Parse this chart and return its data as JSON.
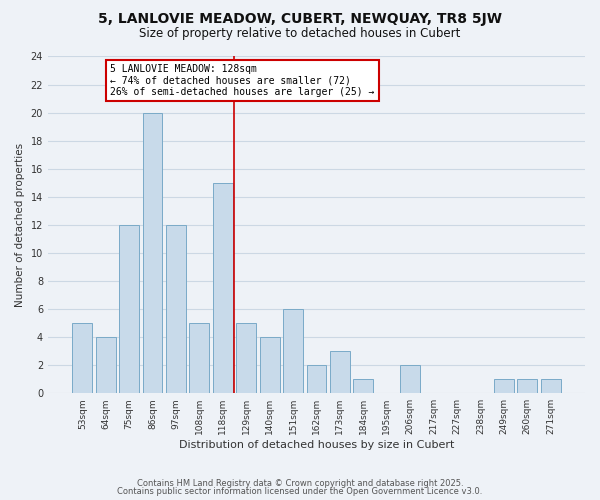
{
  "title": "5, LANLOVIE MEADOW, CUBERT, NEWQUAY, TR8 5JW",
  "subtitle": "Size of property relative to detached houses in Cubert",
  "xlabel": "Distribution of detached houses by size in Cubert",
  "ylabel": "Number of detached properties",
  "bar_color": "#c8daea",
  "bar_edge_color": "#7aaac8",
  "categories": [
    "53sqm",
    "64sqm",
    "75sqm",
    "86sqm",
    "97sqm",
    "108sqm",
    "118sqm",
    "129sqm",
    "140sqm",
    "151sqm",
    "162sqm",
    "173sqm",
    "184sqm",
    "195sqm",
    "206sqm",
    "217sqm",
    "227sqm",
    "238sqm",
    "249sqm",
    "260sqm",
    "271sqm"
  ],
  "values": [
    5,
    4,
    12,
    20,
    12,
    5,
    15,
    5,
    4,
    6,
    2,
    3,
    1,
    0,
    2,
    0,
    0,
    0,
    1,
    1,
    1
  ],
  "ylim": [
    0,
    24
  ],
  "yticks": [
    0,
    2,
    4,
    6,
    8,
    10,
    12,
    14,
    16,
    18,
    20,
    22,
    24
  ],
  "marker_bin_index": 6,
  "marker_label_line1": "5 LANLOVIE MEADOW: 128sqm",
  "marker_label_line2": "← 74% of detached houses are smaller (72)",
  "marker_label_line3": "26% of semi-detached houses are larger (25) →",
  "marker_line_color": "#cc0000",
  "annotation_box_color": "#ffffff",
  "annotation_box_edge": "#cc0000",
  "grid_color": "#ccd8e4",
  "background_color": "#eef2f7",
  "footer1": "Contains HM Land Registry data © Crown copyright and database right 2025.",
  "footer2": "Contains public sector information licensed under the Open Government Licence v3.0."
}
